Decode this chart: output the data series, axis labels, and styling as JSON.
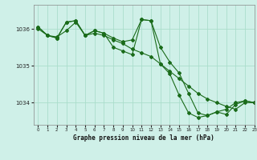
{
  "title": "Graphe pression niveau de la mer (hPa)",
  "bg_color": "#cff0e8",
  "grid_color": "#aaddcc",
  "line_color": "#1a6b1a",
  "xlim": [
    -0.5,
    23
  ],
  "ylim": [
    1033.4,
    1036.65
  ],
  "yticks": [
    1034,
    1035,
    1036
  ],
  "xticks": [
    0,
    1,
    2,
    3,
    4,
    5,
    6,
    7,
    8,
    9,
    10,
    11,
    12,
    13,
    14,
    15,
    16,
    17,
    18,
    19,
    20,
    21,
    22,
    23
  ],
  "series": [
    [
      1036.0,
      1035.82,
      1035.78,
      1035.95,
      1036.18,
      1035.82,
      1035.88,
      1035.82,
      1035.7,
      1035.6,
      1035.45,
      1035.35,
      1035.25,
      1035.05,
      1034.85,
      1034.65,
      1034.45,
      1034.25,
      1034.1,
      1034.0,
      1033.9,
      1033.82,
      1034.0,
      1034.0
    ],
    [
      1036.05,
      1035.82,
      1035.75,
      1036.18,
      1036.22,
      1035.82,
      1035.95,
      1035.88,
      1035.75,
      1035.65,
      1035.7,
      1036.25,
      1036.22,
      1035.5,
      1035.1,
      1034.8,
      1034.25,
      1033.72,
      1033.65,
      1033.75,
      1033.82,
      1034.0,
      1034.05,
      1034.0
    ],
    [
      1036.05,
      1035.82,
      1035.75,
      1036.18,
      1036.22,
      1035.82,
      1035.95,
      1035.88,
      1035.5,
      1035.4,
      1035.3,
      1036.25,
      1036.22,
      1035.05,
      1034.78,
      1034.2,
      1033.72,
      1033.6,
      1033.65,
      1033.75,
      1033.68,
      1033.95,
      1034.05,
      1034.0
    ]
  ]
}
